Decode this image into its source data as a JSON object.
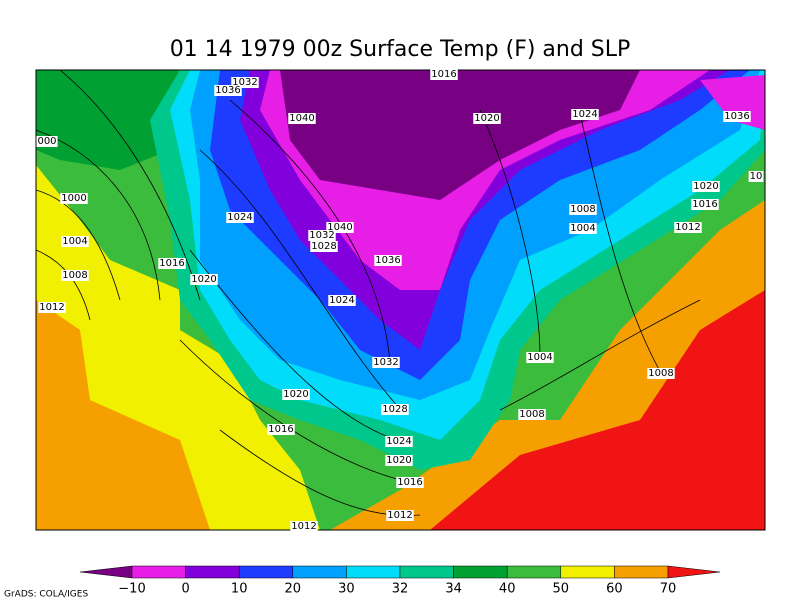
{
  "title": "01 14 1979 00z Surface Temp (F) and SLP",
  "isobar_labels": [
    "1032",
    "1036",
    "1016",
    "1040",
    "1020",
    "1024",
    "1036",
    "000",
    "1020",
    "10",
    "1000",
    "1016",
    "1008",
    "1024",
    "1040",
    "1004",
    "1012",
    "1032",
    "1004",
    "1028",
    "1016",
    "1036",
    "1008",
    "1020",
    "1024",
    "1012",
    "1004",
    "1032",
    "1008",
    "1020",
    "1028",
    "1008",
    "1016",
    "1024",
    "1020",
    "1016",
    "1012",
    "1012"
  ],
  "colorbar": {
    "labels": [
      "−10",
      "0",
      "10",
      "20",
      "30",
      "32",
      "34",
      "40",
      "50",
      "60",
      "70"
    ],
    "colors": [
      "#780082",
      "#e61ee6",
      "#8200dc",
      "#1e3cff",
      "#00a0ff",
      "#00dcfa",
      "#00c88c",
      "#00a032",
      "#3cbc3c",
      "#f0f000",
      "#f5a000",
      "#f01414"
    ]
  },
  "credit": "GrADS: COLA/IGES"
}
